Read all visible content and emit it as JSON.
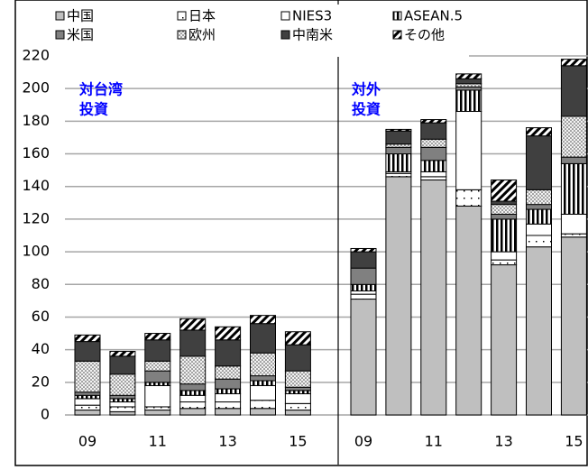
{
  "chart_data": {
    "type": "stacked_bar",
    "categories": [
      "09",
      null,
      "11",
      null,
      "13",
      null,
      "15",
      "09",
      null,
      "11",
      null,
      "13",
      null,
      "15"
    ],
    "group_labels": [
      [
        "対台湾",
        "投資"
      ],
      [
        "対外",
        "投資"
      ]
    ],
    "series": [
      {
        "name": "中国",
        "color": "#bfbfbf",
        "pattern": "solid",
        "values": [
          3,
          2,
          3,
          4,
          4,
          4,
          3,
          71,
          146,
          144,
          128,
          92,
          103,
          109
        ]
      },
      {
        "name": "日本",
        "color": "#ffffff",
        "pattern": "specks",
        "values": [
          3,
          3,
          2,
          4,
          4,
          5,
          4,
          3,
          2,
          2,
          10,
          3,
          7,
          2
        ]
      },
      {
        "name": "NIES3",
        "color": "#ffffff",
        "pattern": "solid",
        "values": [
          4,
          3,
          13,
          4,
          5,
          9,
          6,
          2,
          1,
          3,
          48,
          5,
          7,
          12
        ]
      },
      {
        "name": "ASEAN.5",
        "color": "#ffffff",
        "pattern": "vertical",
        "values": [
          2,
          2,
          2,
          3,
          3,
          3,
          2,
          4,
          11,
          7,
          13,
          20,
          9,
          31
        ]
      },
      {
        "name": "米国",
        "color": "#808080",
        "pattern": "solid",
        "values": [
          2,
          2,
          7,
          4,
          6,
          3,
          2,
          10,
          4,
          8,
          2,
          3,
          3,
          4
        ]
      },
      {
        "name": "欧州",
        "color": "#e0e0e0",
        "pattern": "dots",
        "values": [
          19,
          13,
          6,
          17,
          8,
          14,
          10,
          0,
          2,
          5,
          2,
          6,
          9,
          25
        ]
      },
      {
        "name": "中南米",
        "color": "#404040",
        "pattern": "solid",
        "values": [
          12,
          11,
          13,
          16,
          16,
          18,
          16,
          10,
          8,
          10,
          3,
          2,
          33,
          31
        ]
      },
      {
        "name": "その他",
        "color": "#ffffff",
        "pattern": "diagonal",
        "values": [
          4,
          3,
          4,
          7,
          8,
          5,
          8,
          2,
          1,
          2,
          3,
          13,
          5,
          4
        ]
      }
    ],
    "ylim": [
      0,
      220
    ],
    "yticks": [
      0,
      20,
      40,
      60,
      80,
      100,
      120,
      140,
      160,
      180,
      200,
      220
    ],
    "grid": true
  }
}
